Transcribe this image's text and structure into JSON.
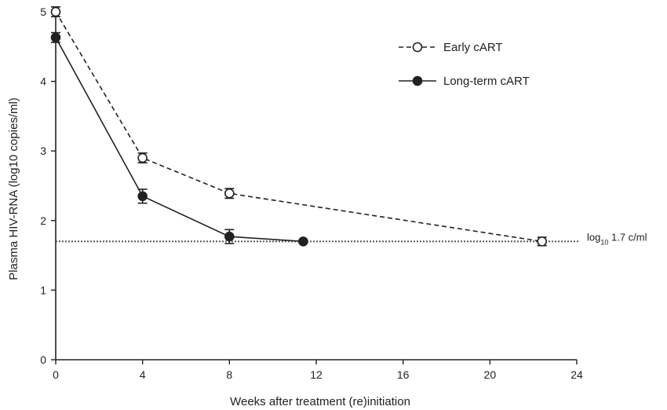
{
  "chart_data": {
    "type": "line",
    "xlabel": "Weeks after treatment (re)initiation",
    "ylabel": "Plasma HIV-RNA (log10 copies/ml)",
    "xlim": [
      0,
      24
    ],
    "ylim": [
      0,
      5
    ],
    "xticks": [
      "0",
      "4",
      "8",
      "12",
      "16",
      "20",
      "24"
    ],
    "yticks": [
      "0",
      "1",
      "2",
      "3",
      "4",
      "5"
    ],
    "grid": false,
    "legend_position": "top-right",
    "series": [
      {
        "name": "Early cART",
        "style": "dashed",
        "marker": "open-circle",
        "color": "#222222",
        "x": [
          0,
          4,
          8,
          22.4
        ],
        "y": [
          5.0,
          2.9,
          2.39,
          1.7
        ],
        "err": [
          0.07,
          0.07,
          0.07,
          0.06
        ]
      },
      {
        "name": "Long-term cART",
        "style": "solid",
        "marker": "filled-circle",
        "color": "#222222",
        "x": [
          0,
          4,
          8,
          11.4
        ],
        "y": [
          4.63,
          2.35,
          1.77,
          1.7
        ],
        "err": [
          0.07,
          0.1,
          0.1,
          0.0
        ]
      }
    ],
    "reference_line": {
      "y": 1.7,
      "label_prefix": "log",
      "label_sub": "10",
      "label_suffix": " 1.7 c/ml",
      "style": "dotted"
    }
  }
}
